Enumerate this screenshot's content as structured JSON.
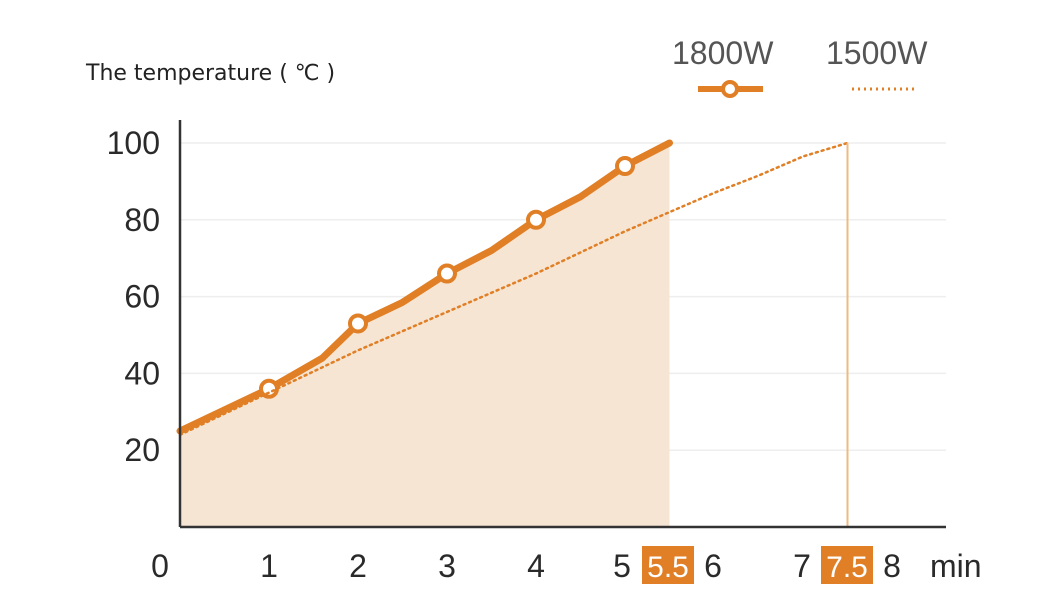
{
  "chart_data": {
    "type": "line",
    "title": "",
    "ylabel": "The temperature ( ℃ )",
    "xlabel": "min",
    "xlim": [
      0,
      8
    ],
    "ylim": [
      0,
      100
    ],
    "x_ticks": [
      "0",
      "1",
      "2",
      "3",
      "4",
      "5",
      "6",
      "7",
      "8"
    ],
    "y_ticks": [
      "20",
      "40",
      "60",
      "80",
      "100"
    ],
    "highlighted_x": [
      {
        "value": 5.5,
        "label": "5.5"
      },
      {
        "value": 7.5,
        "label": "7.5"
      }
    ],
    "legend_position": "top-right",
    "colors": {
      "accent": "#E07F25",
      "fill": "#F7E5D4",
      "grid": "#eeeeee",
      "axis": "#333333"
    },
    "series": [
      {
        "name": "1800W",
        "style": "solid-with-markers",
        "fill_below": true,
        "x": [
          0,
          1,
          1.6,
          2,
          2.5,
          3,
          3.5,
          4,
          4.5,
          5,
          5.5
        ],
        "y": [
          25,
          36,
          44,
          53,
          58.5,
          66,
          72,
          80,
          86,
          94,
          100
        ],
        "markers_x": [
          1,
          2,
          3,
          4,
          5
        ]
      },
      {
        "name": "1500W",
        "style": "dotted",
        "fill_below": false,
        "x": [
          0,
          1,
          2,
          3,
          4,
          5,
          6,
          6.5,
          7,
          7.5
        ],
        "y": [
          24,
          35,
          46,
          56,
          66,
          77,
          87,
          91.5,
          96.5,
          100
        ],
        "markers_x": []
      }
    ]
  }
}
